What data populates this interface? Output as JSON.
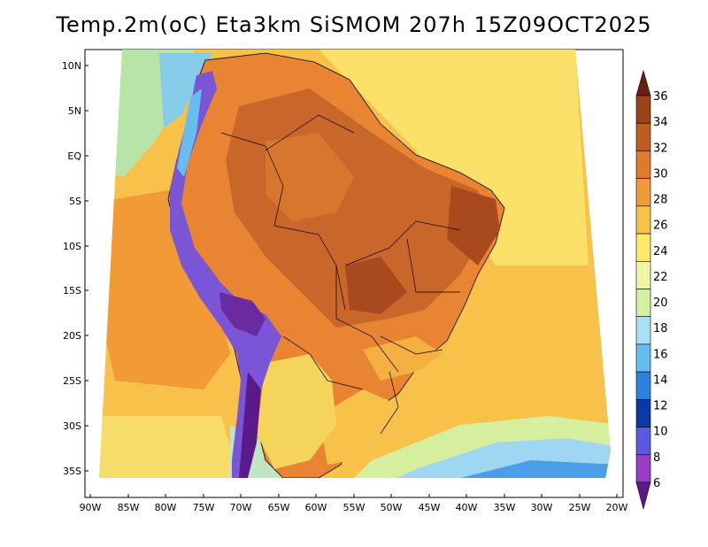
{
  "title": "Temp.2m(oC) Eta3km SiSMOM 207h 15Z09OCT2025",
  "lat_labels": [
    "10N",
    "5N",
    "EQ",
    "5S",
    "10S",
    "15S",
    "20S",
    "25S",
    "30S",
    "35S"
  ],
  "lon_labels": [
    "90W",
    "85W",
    "80W",
    "75W",
    "70W",
    "65W",
    "60W",
    "55W",
    "50W",
    "45W",
    "40W",
    "35W",
    "30W",
    "25W",
    "20W"
  ],
  "colorbar": {
    "min": 6,
    "max": 36,
    "labels": [
      "36",
      "34",
      "32",
      "30",
      "28",
      "26",
      "24",
      "22",
      "20",
      "18",
      "16",
      "14",
      "12",
      "10",
      "8",
      "6"
    ],
    "colors": [
      "#6b1f0e",
      "#9b4218",
      "#c15c20",
      "#df7a2c",
      "#f19a38",
      "#f8c24a",
      "#fde96a",
      "#f2f5a8",
      "#d2f0a0",
      "#a8e0f4",
      "#66bdf0",
      "#2a82e0",
      "#0a3aa8",
      "#5a5ae0",
      "#9a3cc8",
      "#5a1a8a"
    ]
  },
  "palette": {
    "ocean_warm": "#f7b548",
    "ocean_hot": "#f28f30",
    "land_hot": "#c9622a",
    "land_very_hot": "#a8481d",
    "highland": "#7a4fd8",
    "cold": "#2a78e0",
    "cool": "#a6dcf0"
  }
}
